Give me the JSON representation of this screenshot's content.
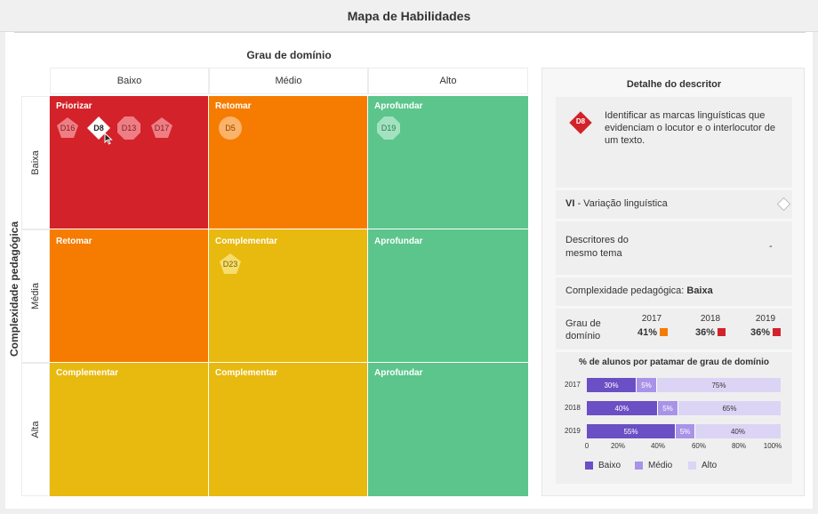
{
  "header": {
    "title": "Mapa de Habilidades"
  },
  "matrix": {
    "x_axis_title": "Grau de domínio",
    "y_axis_title": "Complexidade pedagógica",
    "columns": [
      "Baixo",
      "Médio",
      "Alto"
    ],
    "rows": [
      "Baixa",
      "Média",
      "Alta"
    ],
    "cells": [
      [
        "Priorizar",
        "Retomar",
        "Aprofundar"
      ],
      [
        "Retomar",
        "Complementar",
        "Aprofundar"
      ],
      [
        "Complementar",
        "Complementar",
        "Aprofundar"
      ]
    ],
    "colors": {
      "red": "#d3222a",
      "orange": "#f57c00",
      "yellow": "#e8b90f",
      "green": "#5bc58b"
    },
    "descriptors": [
      {
        "label": "D16",
        "shape": "pentagon-icon"
      },
      {
        "label": "D8",
        "shape": "diamond-icon",
        "selected": true
      },
      {
        "label": "D13",
        "shape": "octagon-icon"
      },
      {
        "label": "D17",
        "shape": "pentagon-icon"
      },
      {
        "label": "D5",
        "shape": "circle-icon"
      },
      {
        "label": "D19",
        "shape": "octagon-icon"
      },
      {
        "label": "D23",
        "shape": "pentagon-icon"
      }
    ]
  },
  "detail": {
    "title": "Detalhe do descritor",
    "descriptor_code": "D8",
    "descriptor_text": "Identificar as marcas linguísticas que evidenciam o locutor e o interlocutor de um texto.",
    "theme_code": "VI",
    "theme_name": " - Variação linguística",
    "related_label": "Descritores do mesmo tema",
    "related_value": "-",
    "complexity_label": "Complexidade pedagógica: ",
    "complexity_value": "Baixa",
    "grau_label": "Grau de domínio",
    "years": [
      {
        "year": "2017",
        "pct": "41%",
        "color": "#f57c00"
      },
      {
        "year": "2018",
        "pct": "36%",
        "color": "#d3222a"
      },
      {
        "year": "2019",
        "pct": "36%",
        "color": "#d3222a"
      }
    ],
    "distribution": {
      "title": "% de alunos por patamar de grau de domínio",
      "rows": [
        {
          "year": "2017",
          "baixo": 30,
          "medio": 5,
          "alto": 75,
          "labels": [
            "30%",
            "5%",
            "75%"
          ]
        },
        {
          "year": "2018",
          "baixo": 40,
          "medio": 5,
          "alto": 65,
          "labels": [
            "40%",
            "5%",
            "65%"
          ]
        },
        {
          "year": "2019",
          "baixo": 55,
          "medio": 5,
          "alto": 40,
          "labels": [
            "55%",
            "5%",
            "40%"
          ]
        }
      ],
      "ticks": [
        "0",
        "20%",
        "40%",
        "60%",
        "80%",
        "100%"
      ],
      "legend": [
        "Baixo",
        "Médio",
        "Alto"
      ],
      "colors": {
        "baixo": "#6b4fc4",
        "medio": "#a993e8",
        "alto": "#dcd4f5"
      }
    }
  }
}
